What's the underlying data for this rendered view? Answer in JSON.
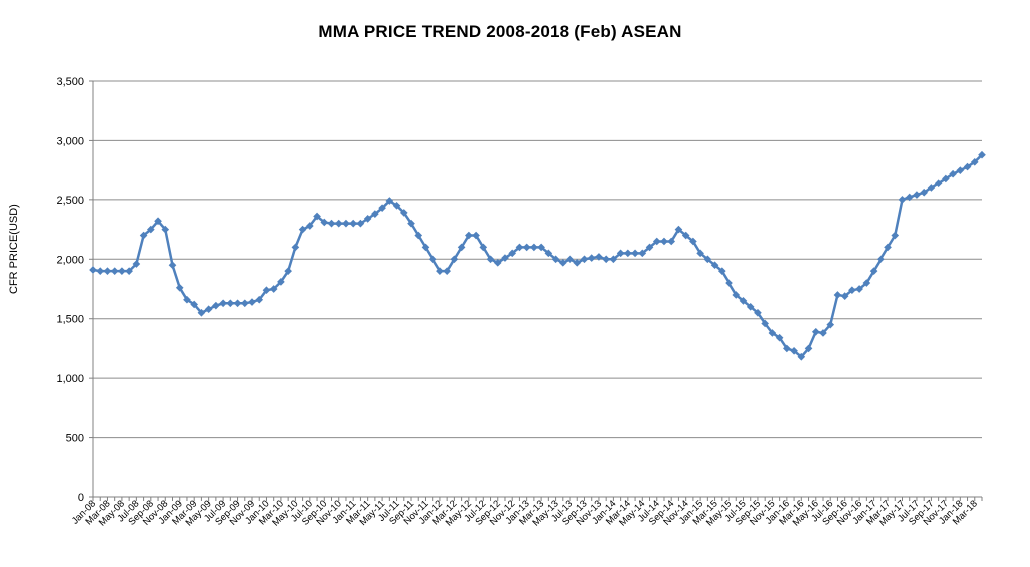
{
  "chart_data": {
    "type": "line",
    "title": "MMA PRICE  TREND 2008-2018 (Feb)  ASEAN",
    "xlabel": "",
    "ylabel": "CFR PRICE(USD)",
    "ylim": [
      0,
      3500
    ],
    "yticks": [
      0,
      500,
      1000,
      1500,
      2000,
      2500,
      3000,
      3500
    ],
    "ytick_labels": [
      "0",
      "500",
      "1,000",
      "1,500",
      "2,000",
      "2,500",
      "3,000",
      "3,500"
    ],
    "grid": true,
    "legend": "none",
    "series_color": "#4f81bd",
    "x_tick_labels": [
      "Jan-08",
      "Mar-08",
      "May-08",
      "Jul-08",
      "Sep-08",
      "Nov-08",
      "Jan-09",
      "Mar-09",
      "May-09",
      "Jul-09",
      "Sep-09",
      "Nov-09",
      "Jan-10",
      "Mar-10",
      "May-10",
      "Jul-10",
      "Sep-10",
      "Nov-10",
      "Jan-11",
      "Mar-11",
      "May-11",
      "Jul-11",
      "Sep-11",
      "Nov-11",
      "Jan-12",
      "Mar-12",
      "May-12",
      "Jul-12",
      "Sep-12",
      "Nov-12",
      "Jan-13",
      "Mar-13",
      "May-13",
      "Jul-13",
      "Sep-13",
      "Nov-13",
      "Jan-14",
      "Mar-14",
      "May-14",
      "Jul-14",
      "Sep-14",
      "Nov-14",
      "Jan-15",
      "Mar-15",
      "May-15",
      "Jul-15",
      "Sep-15",
      "Nov-15",
      "Jan-16",
      "Mar-16",
      "May-16",
      "Jul-16",
      "Sep-16",
      "Nov-16",
      "Jan-17",
      "Mar-17",
      "May-17",
      "Jul-17",
      "Sep-17",
      "Nov-17",
      "Jan-18",
      "Mar-18"
    ],
    "series": [
      {
        "values": [
          1910,
          1900,
          1900,
          1900,
          1900,
          1900,
          1960,
          2200,
          2250,
          2320,
          2250,
          1950,
          1760,
          1660,
          1620,
          1550,
          1580,
          1610,
          1630,
          1630,
          1630,
          1630,
          1640,
          1660,
          1740,
          1750,
          1810,
          1900,
          2100,
          2250,
          2280,
          2360,
          2310,
          2300,
          2300,
          2300,
          2300,
          2300,
          2340,
          2380,
          2430,
          2490,
          2450,
          2390,
          2300,
          2200,
          2100,
          2000,
          1900,
          1900,
          2000,
          2100,
          2200,
          2200,
          2100,
          2000,
          1970,
          2010,
          2050,
          2100,
          2100,
          2100,
          2100,
          2050,
          2000,
          1970,
          2000,
          1970,
          2000,
          2010,
          2020,
          2000,
          2000,
          2050,
          2050,
          2050,
          2050,
          2100,
          2150,
          2150,
          2150,
          2250,
          2200,
          2150,
          2050,
          2000,
          1950,
          1900,
          1800,
          1700,
          1650,
          1600,
          1550,
          1460,
          1380,
          1340,
          1250,
          1230,
          1180,
          1250,
          1390,
          1380,
          1450,
          1700,
          1690,
          1740,
          1750,
          1800,
          1900,
          2000,
          2100,
          2200,
          2500,
          2520,
          2540,
          2560,
          2600,
          2640,
          2680,
          2720,
          2750,
          2780,
          2820,
          2880
        ]
      }
    ]
  }
}
